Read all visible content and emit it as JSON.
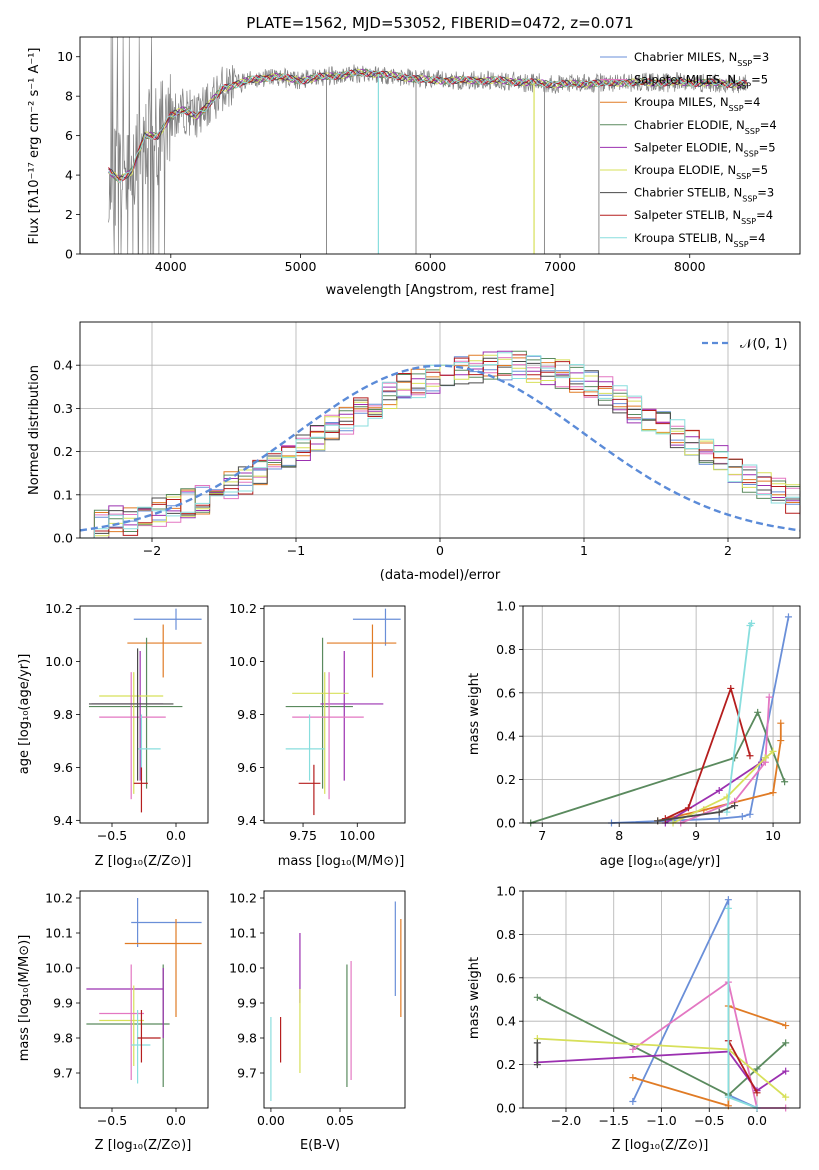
{
  "chart_data": [
    {
      "type": "line",
      "title": "PLATE=1562, MJD=53052, FIBERID=0472, z=0.071",
      "xlabel": "wavelength [Angstrom, rest frame]",
      "ylabel": "Flux [fλ10⁻¹⁷ erg cm⁻² s⁻¹ A⁻¹]",
      "xlim": [
        3300,
        8850
      ],
      "ylim": [
        0,
        11
      ],
      "xticks": [
        "4000",
        "5000",
        "6000",
        "7000",
        "8000"
      ],
      "yticks": [
        "0",
        "2",
        "4",
        "6",
        "8",
        "10"
      ],
      "legend_position": "upper right",
      "data_color": "#808080",
      "spectrum_coarse": {
        "x": [
          3500,
          3600,
          3700,
          3800,
          3900,
          4000,
          4100,
          4200,
          4300,
          4400,
          4600,
          4800,
          5000,
          5200,
          5500,
          6000,
          6500,
          7000,
          7500,
          8000,
          8500
        ],
        "y": [
          4.3,
          3.8,
          4.2,
          6.0,
          6.0,
          7.0,
          7.3,
          7.0,
          7.6,
          8.4,
          8.8,
          9.0,
          8.8,
          9.0,
          9.2,
          8.8,
          8.8,
          8.6,
          8.7,
          8.7,
          8.6
        ]
      },
      "series": [
        {
          "name": "Chabrier MILES, N",
          "sub": "SSP",
          "suffix": "=3",
          "color": "#6a8fd8"
        },
        {
          "name": "Salpeter MILES, N",
          "sub": "SSP",
          "suffix": "=5",
          "color": "#e377c2"
        },
        {
          "name": "Kroupa MILES, N",
          "sub": "SSP",
          "suffix": "=4",
          "color": "#e07b25"
        },
        {
          "name": "Chabrier ELODIE, N",
          "sub": "SSP",
          "suffix": "=4",
          "color": "#5a8a5e"
        },
        {
          "name": "Salpeter ELODIE, N",
          "sub": "SSP",
          "suffix": "=5",
          "color": "#9b30b0"
        },
        {
          "name": "Kroupa ELODIE, N",
          "sub": "SSP",
          "suffix": "=5",
          "color": "#d7e05a"
        },
        {
          "name": "Chabrier STELIB, N",
          "sub": "SSP",
          "suffix": "=3",
          "color": "#4a4a4a"
        },
        {
          "name": "Salpeter STELIB, N",
          "sub": "SSP",
          "suffix": "=4",
          "color": "#b51e1e"
        },
        {
          "name": "Kroupa STELIB, N",
          "sub": "SSP",
          "suffix": "=4",
          "color": "#88dede"
        }
      ]
    },
    {
      "type": "line",
      "xlabel": "(data-model)/error",
      "ylabel": "Normed distribution",
      "xlim": [
        -2.5,
        2.5
      ],
      "ylim": [
        0,
        0.5
      ],
      "xticks": [
        "−2",
        "−1",
        "0",
        "1",
        "2"
      ],
      "yticks": [
        "0.0",
        "0.1",
        "0.2",
        "0.3",
        "0.4"
      ],
      "grid": true,
      "legend": "𝒩(0, 1)",
      "gaussian_color": "#5b8bd8",
      "histogram_bin_edges_start": -2.5,
      "histogram_bin_width": 0.1,
      "histogram_counts": [
        0.03,
        0.03,
        0.04,
        0.04,
        0.05,
        0.06,
        0.07,
        0.08,
        0.09,
        0.1,
        0.12,
        0.13,
        0.15,
        0.17,
        0.19,
        0.21,
        0.23,
        0.25,
        0.27,
        0.29,
        0.31,
        0.33,
        0.35,
        0.36,
        0.37,
        0.38,
        0.39,
        0.39,
        0.4,
        0.4,
        0.4,
        0.39,
        0.39,
        0.38,
        0.37,
        0.36,
        0.34,
        0.32,
        0.3,
        0.28,
        0.26,
        0.24,
        0.22,
        0.2,
        0.18,
        0.16,
        0.14,
        0.12,
        0.11,
        0.09,
        0.08
      ]
    },
    {
      "type": "scatter",
      "xlabel": "Z [log₁₀(Z/Z⊙)]",
      "ylabel": "age  [log₁₀(age/yr)]",
      "xlim": [
        -0.75,
        0.25
      ],
      "ylim": [
        9.39,
        10.21
      ],
      "xticks": [
        "−0.5",
        "0.0"
      ],
      "yticks": [
        "9.4",
        "9.6",
        "9.8",
        "10.0",
        "10.2"
      ],
      "points": [
        {
          "x": 0.0,
          "y": 10.16,
          "xlo": -0.33,
          "xhi": 0.2,
          "ylo": 10.12,
          "yhi": 10.2,
          "color": "#6a8fd8"
        },
        {
          "x": -0.1,
          "y": 10.07,
          "xlo": -0.38,
          "xhi": 0.2,
          "ylo": 9.94,
          "yhi": 10.14,
          "color": "#e07b25"
        },
        {
          "x": -0.23,
          "y": 9.83,
          "xlo": -0.68,
          "xhi": 0.05,
          "ylo": 9.52,
          "yhi": 10.09,
          "color": "#5a8a5e"
        },
        {
          "x": -0.28,
          "y": 9.84,
          "xlo": -0.66,
          "xhi": -0.1,
          "ylo": 9.55,
          "yhi": 10.04,
          "color": "#9b30b0"
        },
        {
          "x": -0.33,
          "y": 9.87,
          "xlo": -0.6,
          "xhi": -0.1,
          "ylo": 9.5,
          "yhi": 9.96,
          "color": "#d7e05a"
        },
        {
          "x": -0.35,
          "y": 9.79,
          "xlo": -0.6,
          "xhi": -0.08,
          "ylo": 9.48,
          "yhi": 9.96,
          "color": "#e377c2"
        },
        {
          "x": -0.27,
          "y": 9.67,
          "xlo": -0.3,
          "xhi": -0.12,
          "ylo": 9.55,
          "yhi": 9.8,
          "color": "#88dede"
        },
        {
          "x": -0.27,
          "y": 9.54,
          "xlo": -0.33,
          "xhi": -0.22,
          "ylo": 9.43,
          "yhi": 9.6,
          "color": "#b51e1e"
        },
        {
          "x": -0.3,
          "y": 9.84,
          "xlo": -0.68,
          "xhi": -0.02,
          "ylo": 9.55,
          "yhi": 10.05,
          "color": "#4a4a4a"
        }
      ]
    },
    {
      "type": "scatter",
      "xlabel": "mass [log₁₀(M/M⊙)]",
      "xlim": [
        9.57,
        10.22
      ],
      "ylim": [
        9.39,
        10.21
      ],
      "xticks": [
        "9.75",
        "10.00"
      ],
      "yticks": [
        "9.4",
        "9.6",
        "9.8",
        "10.0",
        "10.2"
      ],
      "points": [
        {
          "x": 10.13,
          "y": 10.16,
          "xlo": 9.98,
          "xhi": 10.2,
          "ylo": 10.06,
          "yhi": 10.2,
          "color": "#6a8fd8"
        },
        {
          "x": 10.07,
          "y": 10.07,
          "xlo": 9.86,
          "xhi": 10.18,
          "ylo": 9.94,
          "yhi": 10.14,
          "color": "#e07b25"
        },
        {
          "x": 9.84,
          "y": 9.83,
          "xlo": 9.67,
          "xhi": 9.98,
          "ylo": 9.52,
          "yhi": 10.09,
          "color": "#5a8a5e"
        },
        {
          "x": 9.94,
          "y": 9.84,
          "xlo": 9.83,
          "xhi": 10.12,
          "ylo": 9.55,
          "yhi": 10.04,
          "color": "#9b30b0"
        },
        {
          "x": 9.85,
          "y": 9.88,
          "xlo": 9.7,
          "xhi": 9.96,
          "ylo": 9.5,
          "yhi": 9.96,
          "color": "#d7e05a"
        },
        {
          "x": 9.87,
          "y": 9.79,
          "xlo": 9.7,
          "xhi": 10.03,
          "ylo": 9.48,
          "yhi": 9.96,
          "color": "#e377c2"
        },
        {
          "x": 9.78,
          "y": 9.67,
          "xlo": 9.67,
          "xhi": 9.85,
          "ylo": 9.55,
          "yhi": 9.8,
          "color": "#88dede"
        },
        {
          "x": 9.8,
          "y": 9.54,
          "xlo": 9.73,
          "xhi": 9.83,
          "ylo": 9.42,
          "yhi": 9.61,
          "color": "#b51e1e"
        }
      ]
    },
    {
      "type": "line",
      "xlabel": "age  [log₁₀(age/yr)]",
      "ylabel": "mass weight",
      "xlim": [
        6.75,
        10.35
      ],
      "ylim": [
        0,
        1
      ],
      "xticks": [
        "7",
        "8",
        "9",
        "10"
      ],
      "yticks": [
        "0.0",
        "0.2",
        "0.4",
        "0.6",
        "0.8",
        "1.0"
      ],
      "grid": true,
      "series": [
        {
          "color": "#6a8fd8",
          "x": [
            7.9,
            9.3,
            9.6,
            9.7,
            10.2
          ],
          "y": [
            0.0,
            0.02,
            0.03,
            0.04,
            0.95
          ]
        },
        {
          "color": "#e07b25",
          "x": [
            8.5,
            9.1,
            10.0,
            10.1,
            10.1
          ],
          "y": [
            0.01,
            0.06,
            0.14,
            0.38,
            0.46
          ]
        },
        {
          "color": "#5a8a5e",
          "x": [
            6.85,
            9.5,
            9.8,
            10.15
          ],
          "y": [
            0.0,
            0.3,
            0.51,
            0.19
          ]
        },
        {
          "color": "#9b30b0",
          "x": [
            8.6,
            9.3,
            9.85,
            9.9
          ],
          "y": [
            0.0,
            0.15,
            0.28,
            0.3
          ]
        },
        {
          "color": "#e377c2",
          "x": [
            8.8,
            9.5,
            9.9,
            9.95
          ],
          "y": [
            0.0,
            0.1,
            0.28,
            0.58
          ]
        },
        {
          "color": "#d7e05a",
          "x": [
            8.7,
            9.4,
            9.9,
            10.0
          ],
          "y": [
            0.0,
            0.12,
            0.3,
            0.33
          ]
        },
        {
          "color": "#b51e1e",
          "x": [
            8.6,
            8.9,
            9.45,
            9.7
          ],
          "y": [
            0.02,
            0.07,
            0.62,
            0.31
          ]
        },
        {
          "color": "#88dede",
          "x": [
            9.4,
            9.7,
            9.72
          ],
          "y": [
            0.05,
            0.91,
            0.92
          ]
        },
        {
          "color": "#4a4a4a",
          "x": [
            8.5,
            9.3,
            9.5
          ],
          "y": [
            0.01,
            0.05,
            0.08
          ]
        }
      ]
    },
    {
      "type": "scatter",
      "xlabel": "Z [log₁₀(Z/Z⊙)]",
      "ylabel": "mass [log₁₀(M/M⊙)]",
      "xlim": [
        -0.75,
        0.25
      ],
      "ylim": [
        9.6,
        10.22
      ],
      "xticks": [
        "−0.5",
        "0.0"
      ],
      "yticks": [
        "9.7",
        "9.8",
        "9.9",
        "10.0",
        "10.1",
        "10.2"
      ],
      "points": [
        {
          "x": -0.3,
          "y": 10.13,
          "xlo": -0.35,
          "xhi": 0.2,
          "ylo": 10.06,
          "yhi": 10.2,
          "color": "#6a8fd8"
        },
        {
          "x": 0.0,
          "y": 10.07,
          "xlo": -0.4,
          "xhi": 0.2,
          "ylo": 9.86,
          "yhi": 10.14,
          "color": "#e07b25"
        },
        {
          "x": -0.1,
          "y": 9.84,
          "xlo": -0.7,
          "xhi": -0.05,
          "ylo": 9.66,
          "yhi": 10.01,
          "color": "#5a8a5e"
        },
        {
          "x": -0.1,
          "y": 9.94,
          "xlo": -0.7,
          "xhi": -0.1,
          "ylo": 9.8,
          "yhi": 10.0,
          "color": "#9b30b0"
        },
        {
          "x": -0.33,
          "y": 9.85,
          "xlo": -0.6,
          "xhi": -0.25,
          "ylo": 9.72,
          "yhi": 9.95,
          "color": "#d7e05a"
        },
        {
          "x": -0.35,
          "y": 9.87,
          "xlo": -0.6,
          "xhi": -0.25,
          "ylo": 9.68,
          "yhi": 10.01,
          "color": "#e377c2"
        },
        {
          "x": -0.3,
          "y": 9.78,
          "xlo": -0.35,
          "xhi": -0.2,
          "ylo": 9.67,
          "yhi": 9.88,
          "color": "#88dede"
        },
        {
          "x": -0.27,
          "y": 9.8,
          "xlo": -0.3,
          "xhi": -0.12,
          "ylo": 9.73,
          "yhi": 9.88,
          "color": "#b51e1e"
        }
      ]
    },
    {
      "type": "scatter",
      "xlabel": "E(B-V)",
      "xlim": [
        -0.005,
        0.097
      ],
      "ylim": [
        9.6,
        10.22
      ],
      "xticks": [
        "0.00",
        "0.05"
      ],
      "yticks": [
        "9.7",
        "9.8",
        "9.9",
        "10.0",
        "10.1",
        "10.2"
      ],
      "points": [
        {
          "x": 0.0,
          "y": 9.78,
          "ylo": 9.62,
          "yhi": 9.86,
          "color": "#88dede"
        },
        {
          "x": 0.007,
          "y": 9.8,
          "ylo": 9.73,
          "yhi": 9.86,
          "color": "#b51e1e"
        },
        {
          "x": 0.021,
          "y": 10.0,
          "ylo": 9.9,
          "yhi": 10.1,
          "color": "#9b30b0"
        },
        {
          "x": 0.021,
          "y": 9.85,
          "ylo": 9.7,
          "yhi": 9.94,
          "color": "#d7e05a"
        },
        {
          "x": 0.055,
          "y": 9.84,
          "ylo": 9.66,
          "yhi": 10.01,
          "color": "#5a8a5e"
        },
        {
          "x": 0.058,
          "y": 9.87,
          "ylo": 9.68,
          "yhi": 10.02,
          "color": "#e377c2"
        },
        {
          "x": 0.09,
          "y": 10.07,
          "ylo": 9.92,
          "yhi": 10.19,
          "color": "#6a8fd8"
        },
        {
          "x": 0.094,
          "y": 10.0,
          "ylo": 9.86,
          "yhi": 10.14,
          "color": "#e07b25"
        }
      ]
    },
    {
      "type": "line",
      "xlabel": "Z [log₁₀(Z/Z⊙)]",
      "ylabel": "mass weight",
      "xlim": [
        -2.45,
        0.45
      ],
      "ylim": [
        0,
        1
      ],
      "xticks": [
        "−2.0",
        "−1.5",
        "−1.0",
        "−0.5",
        "0.0"
      ],
      "yticks": [
        "0.0",
        "0.2",
        "0.4",
        "0.6",
        "0.8",
        "1.0"
      ],
      "grid": true,
      "series": [
        {
          "color": "#6a8fd8",
          "x": [
            -1.3,
            -0.3,
            -0.3,
            0.0
          ],
          "y": [
            0.03,
            0.96,
            0.06,
            0.0
          ]
        },
        {
          "color": "#e07b25",
          "x": [
            -1.3,
            -0.3,
            -0.3,
            0.3
          ],
          "y": [
            0.14,
            0.01,
            0.47,
            0.38
          ]
        },
        {
          "color": "#5a8a5e",
          "x": [
            -2.3,
            -0.3,
            0.0,
            0.3
          ],
          "y": [
            0.51,
            0.06,
            0.18,
            0.3
          ]
        },
        {
          "color": "#9b30b0",
          "x": [
            -2.3,
            -0.3,
            0.0,
            0.3
          ],
          "y": [
            0.21,
            0.26,
            0.08,
            0.17
          ]
        },
        {
          "color": "#e377c2",
          "x": [
            -1.3,
            -0.3,
            0.0,
            0.3
          ],
          "y": [
            0.27,
            0.58,
            0.0,
            0.0
          ]
        },
        {
          "color": "#d7e05a",
          "x": [
            -2.3,
            -0.3,
            0.3
          ],
          "y": [
            0.32,
            0.27,
            0.05
          ]
        },
        {
          "color": "#b51e1e",
          "x": [
            -0.3,
            0.0
          ],
          "y": [
            0.31,
            0.07
          ]
        },
        {
          "color": "#88dede",
          "x": [
            -0.3,
            -0.3,
            0.0
          ],
          "y": [
            0.92,
            0.05,
            0.0
          ]
        },
        {
          "color": "#4a4a4a",
          "x": [
            -2.3,
            -2.3
          ],
          "y": [
            0.3,
            0.2
          ]
        }
      ]
    }
  ]
}
